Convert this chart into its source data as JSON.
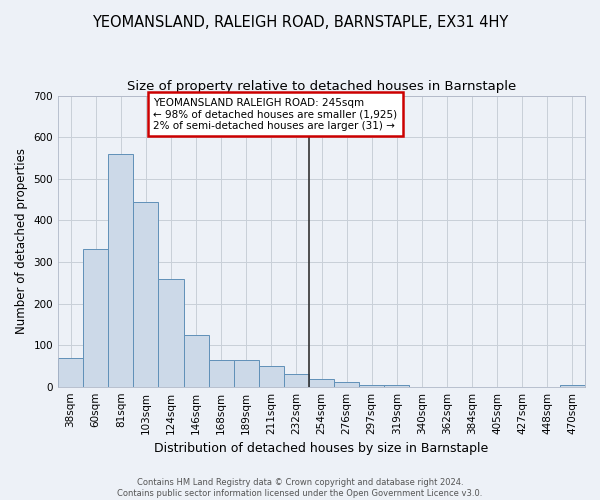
{
  "title": "YEOMANSLAND, RALEIGH ROAD, BARNSTAPLE, EX31 4HY",
  "subtitle": "Size of property relative to detached houses in Barnstaple",
  "xlabel": "Distribution of detached houses by size in Barnstaple",
  "ylabel": "Number of detached properties",
  "categories": [
    "38sqm",
    "60sqm",
    "81sqm",
    "103sqm",
    "124sqm",
    "146sqm",
    "168sqm",
    "189sqm",
    "211sqm",
    "232sqm",
    "254sqm",
    "276sqm",
    "297sqm",
    "319sqm",
    "340sqm",
    "362sqm",
    "384sqm",
    "405sqm",
    "427sqm",
    "448sqm",
    "470sqm"
  ],
  "values": [
    70,
    330,
    560,
    445,
    260,
    125,
    65,
    65,
    50,
    30,
    18,
    12,
    5,
    5,
    0,
    0,
    0,
    0,
    0,
    0,
    5
  ],
  "bar_color": "#ccd9e8",
  "bar_edge_color": "#6090b8",
  "grid_color": "#c8cfd8",
  "background_color": "#edf1f7",
  "annotation_text": "YEOMANSLAND RALEIGH ROAD: 245sqm\n← 98% of detached houses are smaller (1,925)\n2% of semi-detached houses are larger (31) →",
  "annotation_box_color": "#ffffff",
  "annotation_box_edge": "#cc0000",
  "vline_color": "#333333",
  "vline_x_idx": 10,
  "ylim": [
    0,
    700
  ],
  "title_fontsize": 10.5,
  "subtitle_fontsize": 9.5,
  "xlabel_fontsize": 9,
  "ylabel_fontsize": 8.5,
  "tick_fontsize": 7.5,
  "annotation_fontsize": 7.5,
  "footer_text": "Contains HM Land Registry data © Crown copyright and database right 2024.\nContains public sector information licensed under the Open Government Licence v3.0.",
  "footer_fontsize": 6
}
